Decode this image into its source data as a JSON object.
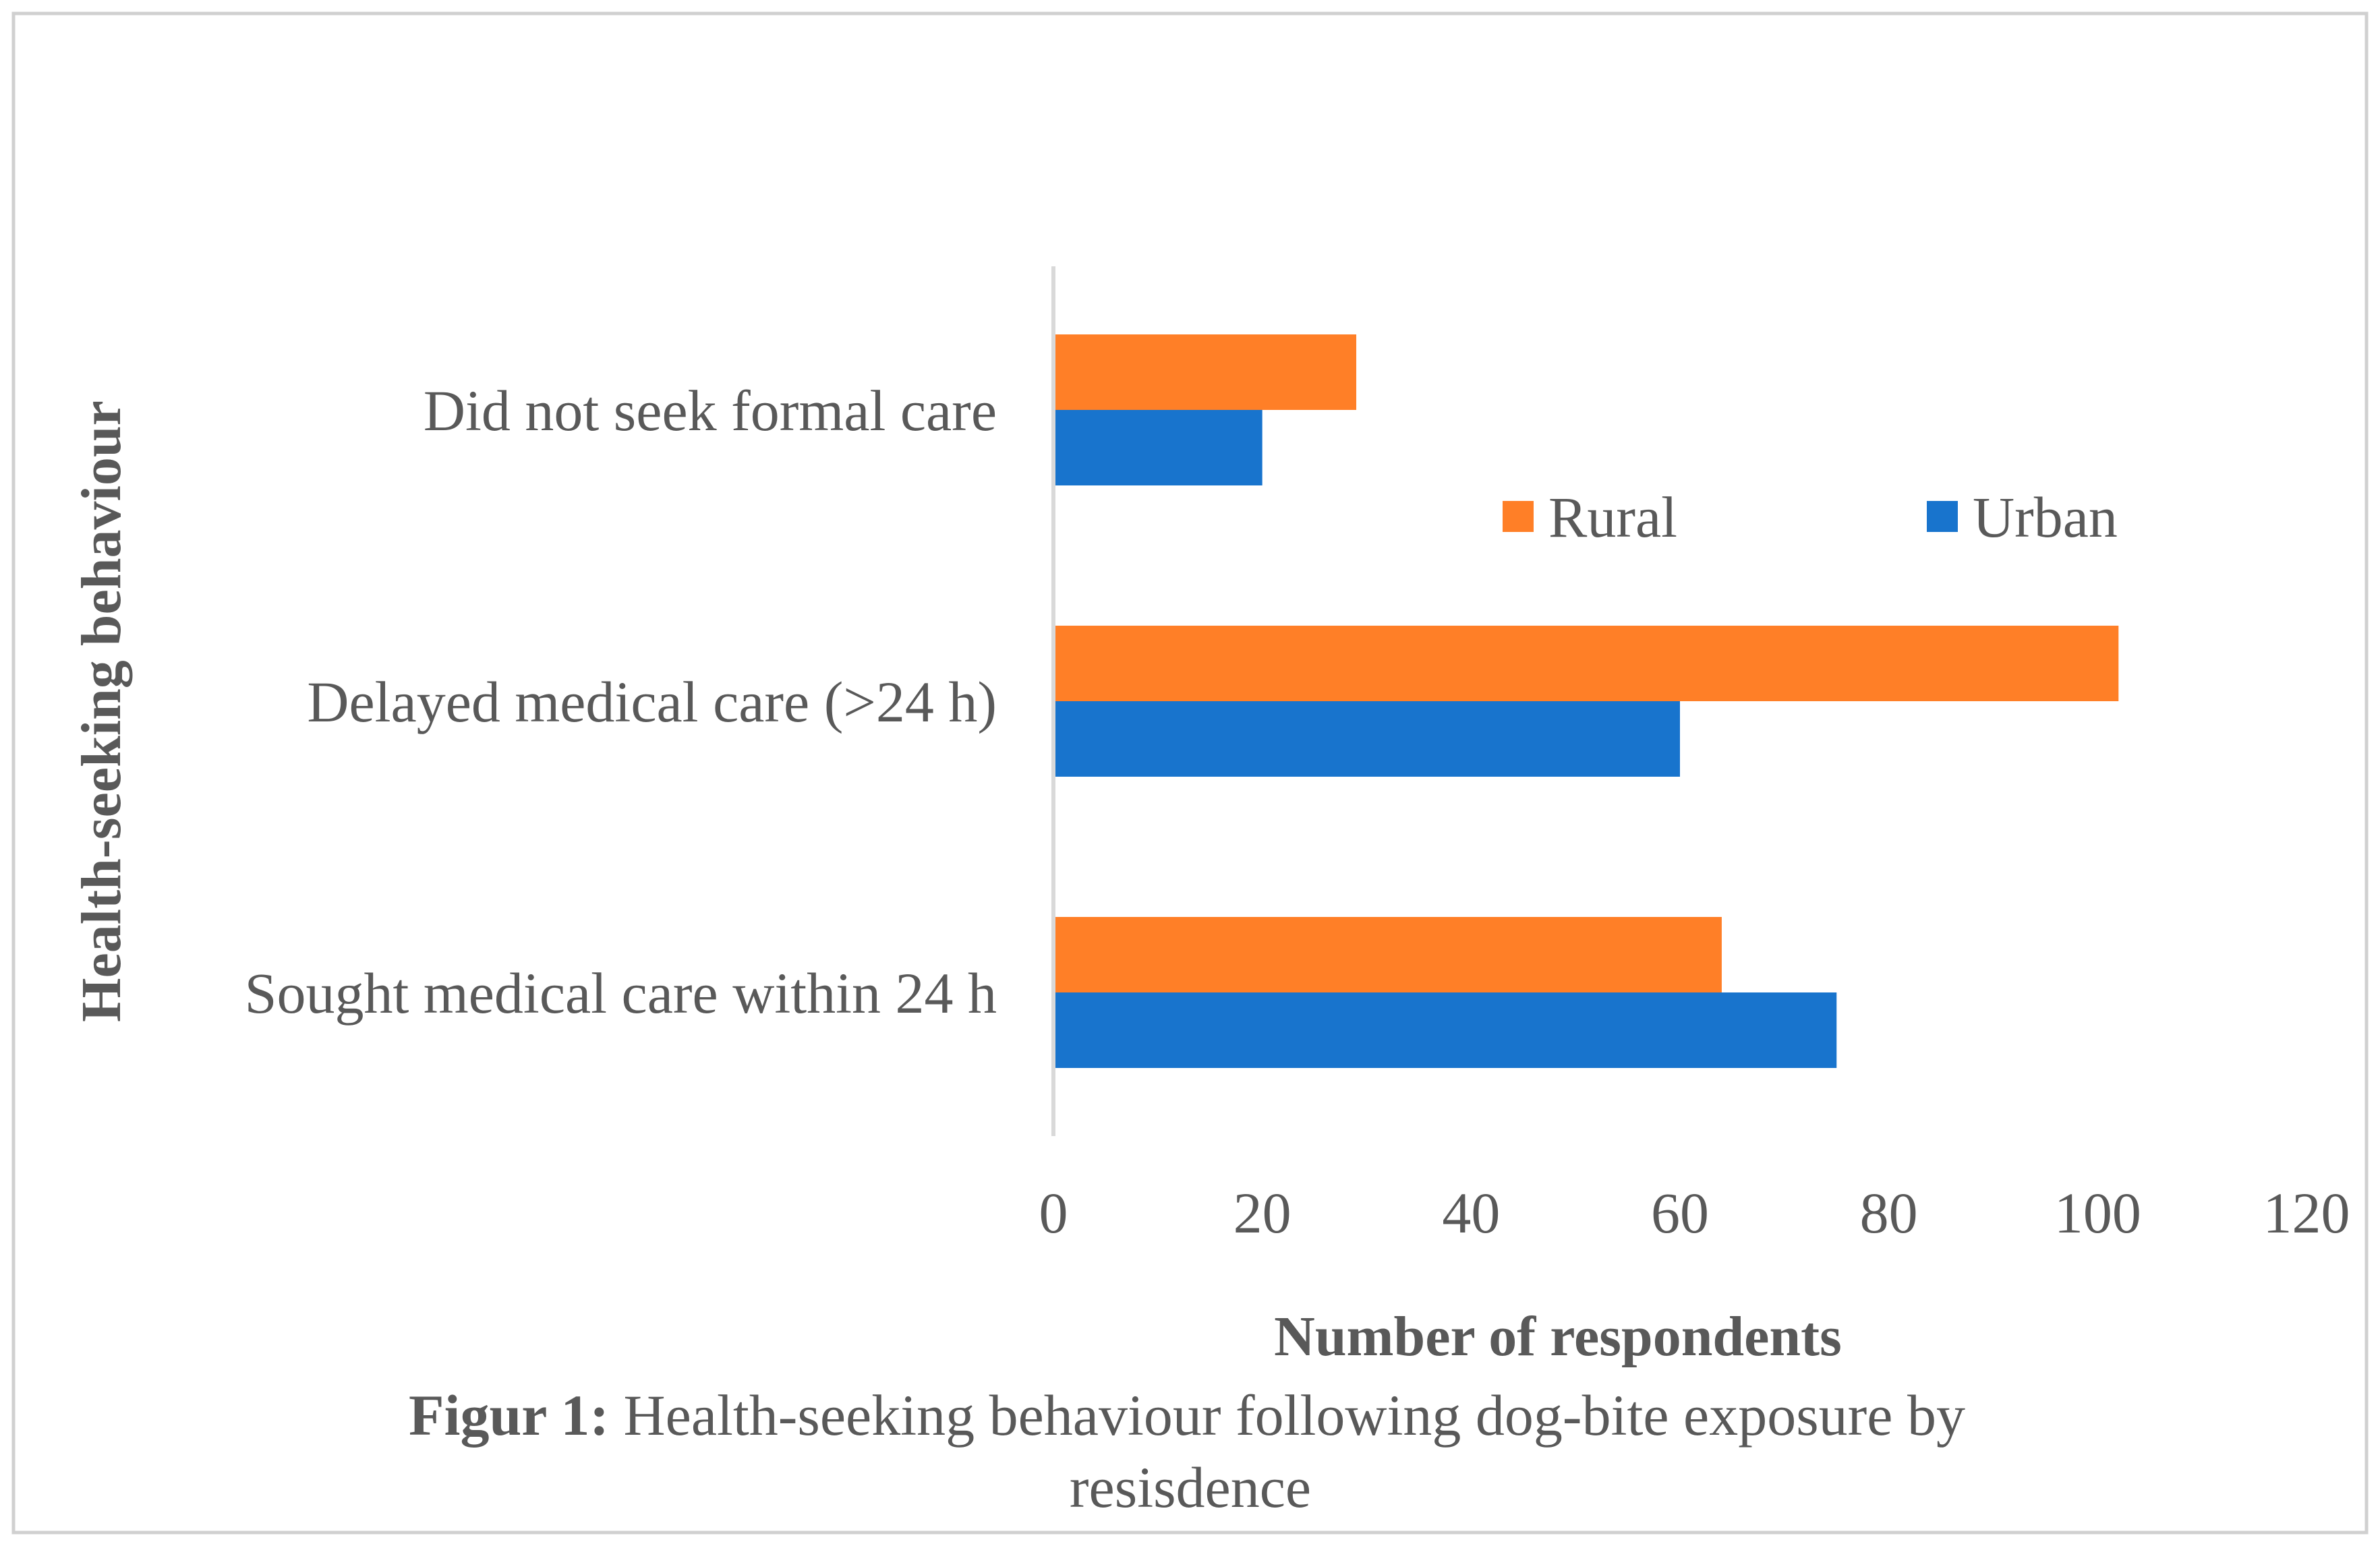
{
  "chart_data": {
    "type": "bar",
    "orientation": "horizontal",
    "categories": [
      "Sought medical care within 24 h",
      "Delayed medical care (>24 h)",
      "Did not seek formal care"
    ],
    "series": [
      {
        "name": "Urban",
        "color": "#1874CD",
        "values": [
          75,
          60,
          20
        ]
      },
      {
        "name": "Rural",
        "color": "#FF7F27",
        "values": [
          64,
          102,
          29
        ]
      }
    ],
    "xlabel": "Number of respondents",
    "ylabel": "Health-seeking behaviour",
    "xlim": [
      0,
      120
    ],
    "xticks": [
      "0",
      "20",
      "40",
      "60",
      "80",
      "100",
      "120"
    ],
    "grid": false,
    "legend_position": "right-center",
    "legend_order": [
      "Rural",
      "Urban"
    ]
  },
  "caption": {
    "prefix": "Figur 1:",
    "line1": " Health-seeking behaviour following dog-bite exposure by",
    "line2": "resisdence"
  }
}
